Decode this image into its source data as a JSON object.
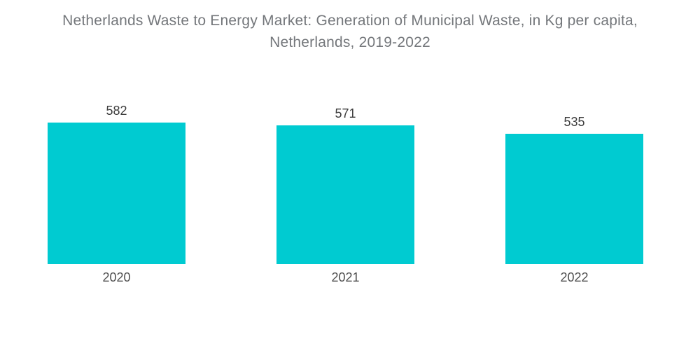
{
  "title": {
    "line1": "Netherlands Waste to Energy Market: Generation of Municipal Waste, in Kg per capita,",
    "line2": "Netherlands, 2019-2022"
  },
  "chart_data": {
    "type": "bar",
    "title": "Netherlands Waste to Energy Market: Generation of Municipal Waste, in Kg per capita, Netherlands, 2019-2022",
    "categories": [
      "2020",
      "2021",
      "2022"
    ],
    "values": [
      582,
      571,
      535
    ],
    "series_name": "Generation of Municipal Waste (Kg per capita)",
    "xlabel": "",
    "ylabel": "",
    "ylim": [
      0,
      582
    ],
    "axes_visible": false,
    "grid": false,
    "legend": false,
    "value_labels_position": "above-bars",
    "colors": {
      "bar": "#00CBD1",
      "value_label": "#3C3C3C",
      "category_label": "#4F4F4F",
      "title": "#74777B",
      "background": "#FFFFFF"
    }
  }
}
